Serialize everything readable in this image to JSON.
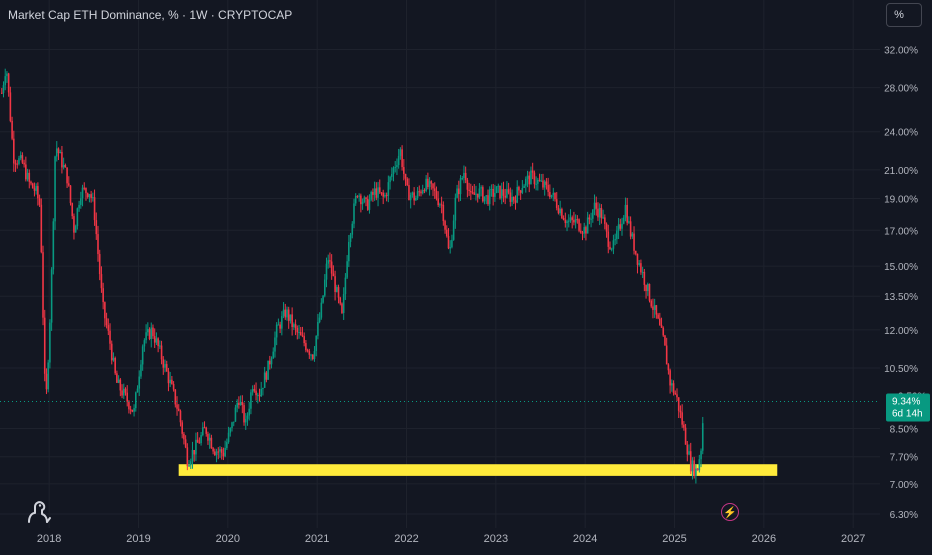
{
  "header": {
    "title": "Market Cap ETH Dominance, % · 1W · CRYPTOCAP"
  },
  "toolbar": {
    "unit_label": "%"
  },
  "price_badge": {
    "value": "9.34%",
    "countdown": "6d 14h",
    "color": "#089981"
  },
  "partial_label": "9.50%",
  "support_zone": {
    "low": 7.2,
    "high": 7.5,
    "from": 2019.45,
    "to": 2026.15,
    "color": "#ffeb3b"
  },
  "chart_data": {
    "type": "candlestick",
    "title": "Market Cap ETH Dominance, % · 1W · CRYPTOCAP",
    "y_scale": "log",
    "ylim": [
      6.0,
      34.5
    ],
    "xlim": [
      2017.45,
      2027.3
    ],
    "y_ticks": [
      "32.00%",
      "28.00%",
      "24.00%",
      "21.00%",
      "19.00%",
      "17.00%",
      "15.00%",
      "13.50%",
      "12.00%",
      "10.50%",
      "8.50%",
      "7.70%",
      "7.00%",
      "6.30%"
    ],
    "y_tick_values": [
      32,
      28,
      24,
      21,
      19,
      17,
      15,
      13.5,
      12,
      10.5,
      8.5,
      7.7,
      7.0,
      6.3
    ],
    "x_ticks": [
      "2018",
      "2019",
      "2020",
      "2021",
      "2022",
      "2023",
      "2024",
      "2025",
      "2026",
      "2027"
    ],
    "x_tick_values": [
      2018,
      2019,
      2020,
      2021,
      2022,
      2023,
      2024,
      2025,
      2026,
      2027
    ],
    "last_value": 9.34,
    "up_color": "#089981",
    "down_color": "#f23645",
    "path": [
      [
        2017.47,
        27.5
      ],
      [
        2017.52,
        30.5
      ],
      [
        2017.6,
        22.0
      ],
      [
        2017.7,
        21.5
      ],
      [
        2017.78,
        20.0
      ],
      [
        2017.85,
        19.5
      ],
      [
        2017.9,
        18.5
      ],
      [
        2017.96,
        9.0
      ],
      [
        2018.02,
        13.5
      ],
      [
        2018.07,
        23.0
      ],
      [
        2018.12,
        22.0
      ],
      [
        2018.2,
        20.5
      ],
      [
        2018.28,
        17.0
      ],
      [
        2018.35,
        19.5
      ],
      [
        2018.45,
        19.5
      ],
      [
        2018.5,
        18.5
      ],
      [
        2018.6,
        13.0
      ],
      [
        2018.68,
        11.5
      ],
      [
        2018.75,
        10.0
      ],
      [
        2018.85,
        9.5
      ],
      [
        2018.95,
        9.0
      ],
      [
        2019.05,
        11.5
      ],
      [
        2019.15,
        12.0
      ],
      [
        2019.25,
        11.0
      ],
      [
        2019.35,
        10.0
      ],
      [
        2019.45,
        9.0
      ],
      [
        2019.55,
        7.6
      ],
      [
        2019.65,
        8.0
      ],
      [
        2019.75,
        8.5
      ],
      [
        2019.85,
        7.9
      ],
      [
        2019.95,
        7.8
      ],
      [
        2020.05,
        8.6
      ],
      [
        2020.12,
        9.5
      ],
      [
        2020.2,
        8.6
      ],
      [
        2020.28,
        10.0
      ],
      [
        2020.35,
        9.6
      ],
      [
        2020.45,
        10.5
      ],
      [
        2020.55,
        12.0
      ],
      [
        2020.65,
        12.8
      ],
      [
        2020.75,
        12.0
      ],
      [
        2020.85,
        11.5
      ],
      [
        2020.95,
        11.0
      ],
      [
        2021.05,
        13.0
      ],
      [
        2021.12,
        15.5
      ],
      [
        2021.2,
        14.0
      ],
      [
        2021.28,
        12.5
      ],
      [
        2021.35,
        16.5
      ],
      [
        2021.45,
        19.5
      ],
      [
        2021.55,
        18.5
      ],
      [
        2021.65,
        19.5
      ],
      [
        2021.75,
        19.0
      ],
      [
        2021.85,
        21.0
      ],
      [
        2021.93,
        22.5
      ],
      [
        2022.0,
        19.5
      ],
      [
        2022.1,
        19.0
      ],
      [
        2022.2,
        20.0
      ],
      [
        2022.3,
        19.5
      ],
      [
        2022.4,
        18.5
      ],
      [
        2022.48,
        15.5
      ],
      [
        2022.55,
        19.0
      ],
      [
        2022.65,
        21.0
      ],
      [
        2022.72,
        19.0
      ],
      [
        2022.8,
        19.5
      ],
      [
        2022.9,
        19.0
      ],
      [
        2023.0,
        19.5
      ],
      [
        2023.1,
        19.3
      ],
      [
        2023.2,
        19.0
      ],
      [
        2023.3,
        20.0
      ],
      [
        2023.4,
        20.5
      ],
      [
        2023.5,
        20.0
      ],
      [
        2023.6,
        19.5
      ],
      [
        2023.7,
        18.5
      ],
      [
        2023.8,
        17.5
      ],
      [
        2023.9,
        17.5
      ],
      [
        2024.0,
        17.0
      ],
      [
        2024.1,
        18.5
      ],
      [
        2024.18,
        18.0
      ],
      [
        2024.25,
        16.5
      ],
      [
        2024.32,
        16.0
      ],
      [
        2024.4,
        17.5
      ],
      [
        2024.45,
        18.5
      ],
      [
        2024.5,
        17.0
      ],
      [
        2024.58,
        15.5
      ],
      [
        2024.65,
        14.5
      ],
      [
        2024.72,
        13.5
      ],
      [
        2024.8,
        12.5
      ],
      [
        2024.88,
        11.5
      ],
      [
        2024.95,
        10.0
      ],
      [
        2025.02,
        9.5
      ],
      [
        2025.1,
        8.5
      ],
      [
        2025.18,
        7.5
      ],
      [
        2025.25,
        7.3
      ],
      [
        2025.3,
        8.0
      ],
      [
        2025.33,
        9.34
      ]
    ]
  }
}
